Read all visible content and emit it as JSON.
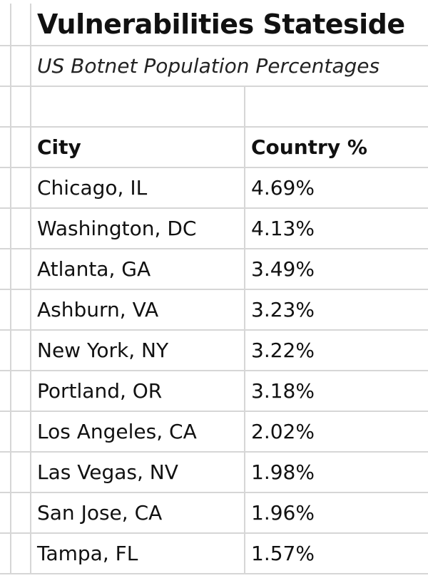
{
  "chart_data": {
    "type": "table",
    "title": "Vulnerabilities Stateside",
    "subtitle": "US Botnet Population Percentages",
    "columns": [
      "City",
      "Country %"
    ],
    "rows": [
      {
        "city": "Chicago, IL",
        "percent": "4.69%",
        "value": 4.69
      },
      {
        "city": "Washington, DC",
        "percent": "4.13%",
        "value": 4.13
      },
      {
        "city": "Atlanta, GA",
        "percent": "3.49%",
        "value": 3.49
      },
      {
        "city": "Ashburn, VA",
        "percent": "3.23%",
        "value": 3.23
      },
      {
        "city": "New York, NY",
        "percent": "3.22%",
        "value": 3.22
      },
      {
        "city": "Portland, OR",
        "percent": "3.18%",
        "value": 3.18
      },
      {
        "city": "Los Angeles, CA",
        "percent": "2.02%",
        "value": 2.02
      },
      {
        "city": "Las Vegas, NV",
        "percent": "1.98%",
        "value": 1.98
      },
      {
        "city": "San Jose, CA",
        "percent": "1.96%",
        "value": 1.96
      },
      {
        "city": "Tampa, FL",
        "percent": "1.57%",
        "value": 1.57
      }
    ]
  }
}
